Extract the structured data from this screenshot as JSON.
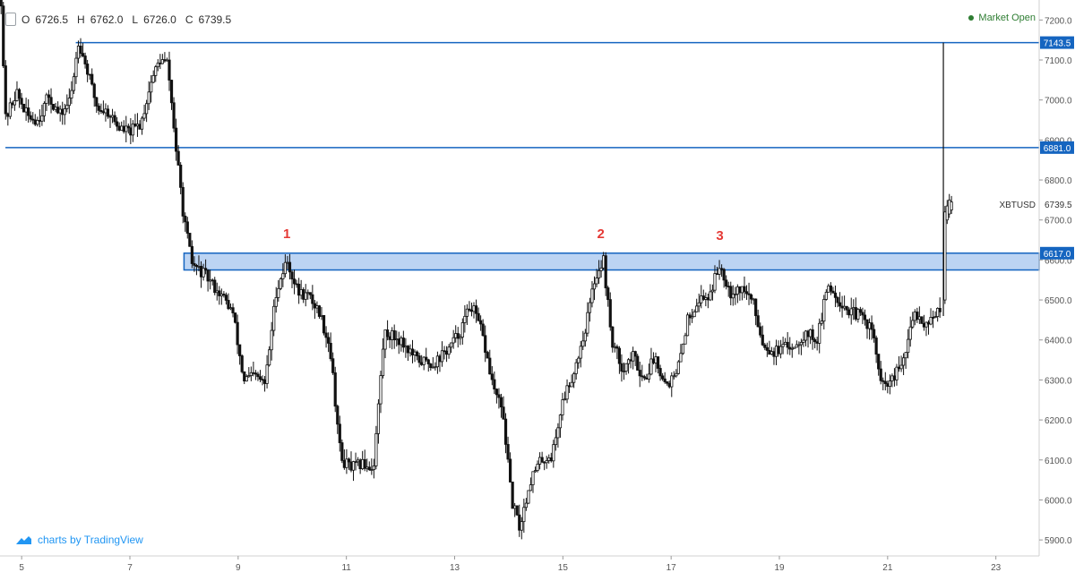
{
  "header": {
    "ohlc": [
      {
        "key": "O",
        "value": "6726.5"
      },
      {
        "key": "H",
        "value": "6762.0"
      },
      {
        "key": "L",
        "value": "6726.0"
      },
      {
        "key": "C",
        "value": "6739.5"
      }
    ]
  },
  "status": {
    "market_label": "Market Open",
    "color": "#2e7d32"
  },
  "branding": {
    "label": "charts by TradingView",
    "color": "#2196f3"
  },
  "chart_data": {
    "type": "candlestick",
    "symbol_label": "XBTUSD",
    "last_price": 6739.5,
    "ylim": [
      5860,
      7250
    ],
    "y_ticks": [
      5900,
      6000,
      6100,
      6200,
      6300,
      6400,
      6500,
      6600,
      6700,
      6800,
      6900,
      7000,
      7100,
      7200
    ],
    "y_tick_labels": [
      "5900.0",
      "6000.0",
      "6100.0",
      "6200.0",
      "6300.0",
      "6400.0",
      "6500.0",
      "6600.0",
      "6700.0",
      "6800.0",
      "6900.0",
      "7000.0",
      "7100.0",
      "7200.0"
    ],
    "x_ticks": [
      5,
      7,
      9,
      11,
      13,
      15,
      17,
      19,
      21,
      23
    ],
    "x_tick_labels": [
      "5",
      "7",
      "9",
      "11",
      "13",
      "15",
      "17",
      "19",
      "21",
      "23"
    ],
    "xlim": [
      4.6,
      23.8
    ],
    "grid": false,
    "colors": {
      "candle": "#111111",
      "level_line": "#1565c0",
      "zone_fill": "#bcd4f3",
      "annotation": "#e53935",
      "axis_text": "#555555"
    },
    "levels": [
      {
        "value": 7143.5,
        "label": "7143.5",
        "x_start": 6.0
      },
      {
        "value": 6881.0,
        "label": "6881.0",
        "x_start": 4.7
      }
    ],
    "zone": {
      "from": 6575,
      "to": 6617,
      "label": "6617.0",
      "x_start": 8.0
    },
    "annotations": [
      {
        "text": "1",
        "x": 9.9,
        "y": 6655
      },
      {
        "text": "2",
        "x": 15.7,
        "y": 6655
      },
      {
        "text": "3",
        "x": 17.9,
        "y": 6650
      }
    ],
    "price_path": [
      [
        4.62,
        7250
      ],
      [
        4.7,
        6950
      ],
      [
        4.9,
        7020
      ],
      [
        5.1,
        6960
      ],
      [
        5.3,
        6950
      ],
      [
        5.5,
        7010
      ],
      [
        5.7,
        6960
      ],
      [
        5.9,
        7000
      ],
      [
        6.05,
        7150
      ],
      [
        6.2,
        7080
      ],
      [
        6.4,
        6980
      ],
      [
        6.6,
        6970
      ],
      [
        6.8,
        6930
      ],
      [
        7.0,
        6920
      ],
      [
        7.2,
        6940
      ],
      [
        7.4,
        7050
      ],
      [
        7.55,
        7100
      ],
      [
        7.7,
        7090
      ],
      [
        7.85,
        6880
      ],
      [
        8.0,
        6700
      ],
      [
        8.15,
        6590
      ],
      [
        8.4,
        6560
      ],
      [
        8.7,
        6510
      ],
      [
        8.9,
        6470
      ],
      [
        9.1,
        6300
      ],
      [
        9.3,
        6310
      ],
      [
        9.5,
        6290
      ],
      [
        9.7,
        6520
      ],
      [
        9.9,
        6600
      ],
      [
        10.1,
        6520
      ],
      [
        10.3,
        6510
      ],
      [
        10.5,
        6470
      ],
      [
        10.7,
        6380
      ],
      [
        10.9,
        6100
      ],
      [
        11.1,
        6080
      ],
      [
        11.3,
        6090
      ],
      [
        11.5,
        6080
      ],
      [
        11.7,
        6420
      ],
      [
        12.0,
        6400
      ],
      [
        12.3,
        6350
      ],
      [
        12.6,
        6340
      ],
      [
        12.9,
        6380
      ],
      [
        13.1,
        6420
      ],
      [
        13.3,
        6490
      ],
      [
        13.5,
        6420
      ],
      [
        13.7,
        6290
      ],
      [
        13.9,
        6210
      ],
      [
        14.05,
        6000
      ],
      [
        14.2,
        5930
      ],
      [
        14.4,
        6050
      ],
      [
        14.6,
        6100
      ],
      [
        14.8,
        6110
      ],
      [
        15.0,
        6250
      ],
      [
        15.2,
        6320
      ],
      [
        15.4,
        6420
      ],
      [
        15.6,
        6560
      ],
      [
        15.75,
        6600
      ],
      [
        15.9,
        6400
      ],
      [
        16.1,
        6330
      ],
      [
        16.3,
        6360
      ],
      [
        16.5,
        6300
      ],
      [
        16.7,
        6360
      ],
      [
        16.9,
        6290
      ],
      [
        17.1,
        6310
      ],
      [
        17.3,
        6450
      ],
      [
        17.5,
        6500
      ],
      [
        17.7,
        6510
      ],
      [
        17.9,
        6590
      ],
      [
        18.1,
        6520
      ],
      [
        18.3,
        6530
      ],
      [
        18.5,
        6500
      ],
      [
        18.7,
        6390
      ],
      [
        18.9,
        6370
      ],
      [
        19.1,
        6380
      ],
      [
        19.3,
        6390
      ],
      [
        19.5,
        6420
      ],
      [
        19.7,
        6400
      ],
      [
        19.9,
        6540
      ],
      [
        20.1,
        6500
      ],
      [
        20.3,
        6470
      ],
      [
        20.5,
        6460
      ],
      [
        20.7,
        6430
      ],
      [
        20.9,
        6280
      ],
      [
        21.1,
        6300
      ],
      [
        21.3,
        6350
      ],
      [
        21.5,
        6470
      ],
      [
        21.7,
        6440
      ],
      [
        21.9,
        6470
      ],
      [
        22.0,
        6460
      ],
      [
        22.03,
        7143.5
      ],
      [
        22.08,
        6680
      ],
      [
        22.2,
        6739.5
      ]
    ]
  }
}
